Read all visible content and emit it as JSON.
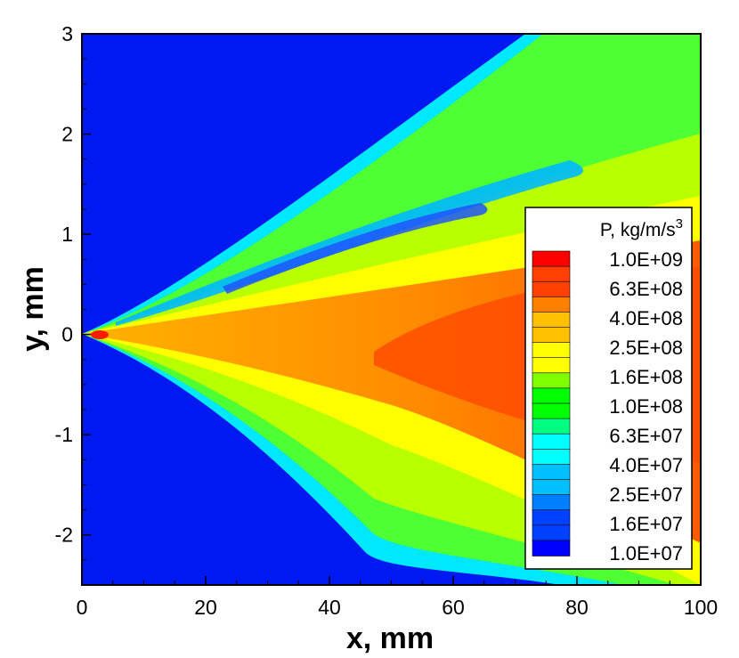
{
  "chart_data": {
    "type": "heatmap",
    "title": "",
    "xlabel": "x, mm",
    "ylabel": "y, mm",
    "xlim": [
      0,
      100
    ],
    "ylim": [
      -2.5,
      3
    ],
    "x_ticks": [
      0,
      20,
      40,
      60,
      80,
      100
    ],
    "y_ticks": [
      -2,
      -1,
      0,
      1,
      2,
      3
    ],
    "x_tick_labels": [
      "0",
      "20",
      "40",
      "60",
      "80",
      "100"
    ],
    "y_tick_labels": [
      "-2",
      "-1",
      "0",
      "1",
      "2",
      "3"
    ],
    "grid": false,
    "colorbar": {
      "title": "P, kg/m/s",
      "title_superscript": "3",
      "scale": "log",
      "placement": "right-inside",
      "range": [
        10000000.0,
        1000000000.0
      ],
      "labels": [
        "1.0E+09",
        "6.3E+08",
        "4.0E+08",
        "2.5E+08",
        "1.6E+08",
        "1.0E+08",
        "6.3E+07",
        "4.0E+07",
        "2.5E+07",
        "1.6E+07",
        "1.0E+07"
      ],
      "colors": [
        "#0000ff",
        "#0040ff",
        "#0080ff",
        "#00c0ff",
        "#00ffff",
        "#00ff80",
        "#00ff00",
        "#80ff00",
        "#ffff00",
        "#ffc000",
        "#ff8000",
        "#ff4000",
        "#ff0000"
      ]
    },
    "field": {
      "description_values": "Pressure-like source field P spreading from origin (0,0) as a widening plume",
      "background_value": 10000000.0,
      "core_value": 700000000.0,
      "peak_value": 1000000000.0,
      "peak_location": [
        3,
        0
      ],
      "upper_edge_slope_mm_per_mm": 0.045,
      "lower_edge_slope_mm_per_mm": -0.052,
      "upper_low_band_slope_mm_per_mm": 0.018
    }
  }
}
